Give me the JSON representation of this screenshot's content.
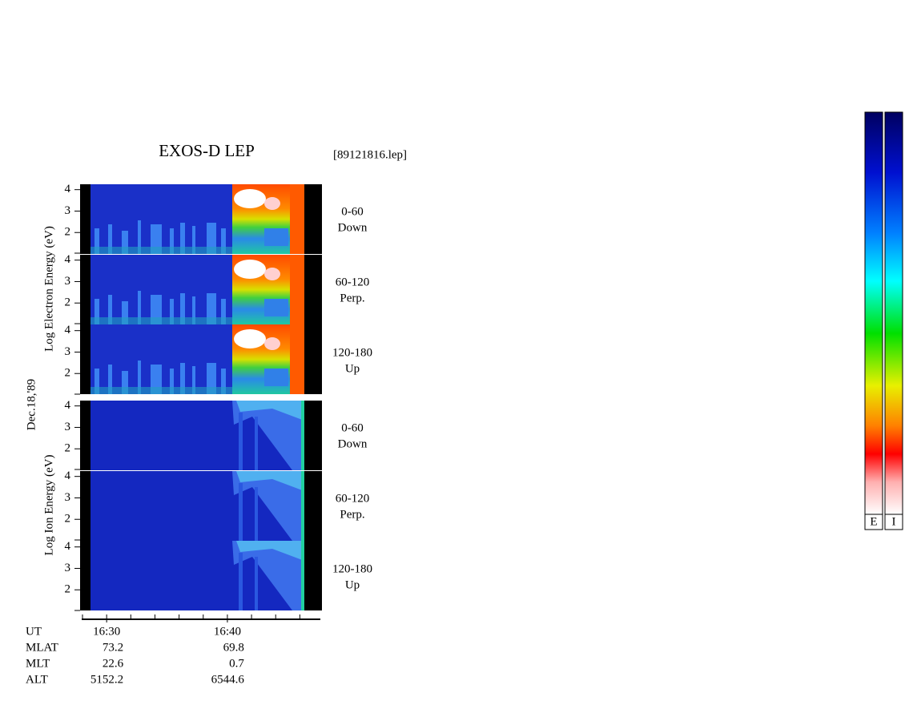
{
  "chart_data": {
    "type": "spectrogram",
    "title": "EXOS-D LEP",
    "file": "[89121816.lep]",
    "date_label": "Dec.18,'89",
    "groups": [
      {
        "ylabel": "Log  Electron  Energy (eV)",
        "panels": [
          {
            "angle": "0-60",
            "direction": "Down"
          },
          {
            "angle": "60-120",
            "direction": "Perp."
          },
          {
            "angle": "120-180",
            "direction": "Up"
          }
        ]
      },
      {
        "ylabel": "Log  Ion  Energy (eV)",
        "panels": [
          {
            "angle": "0-60",
            "direction": "Down"
          },
          {
            "angle": "60-120",
            "direction": "Perp."
          },
          {
            "angle": "120-180",
            "direction": "Up"
          }
        ]
      }
    ],
    "ylim": [
      1,
      4.25
    ],
    "yticks": [
      2,
      3,
      4
    ],
    "xlim": [
      28,
      47.7
    ],
    "xticks": [
      {
        "value": 30,
        "label": "16:30"
      },
      {
        "value": 40,
        "label": "16:40"
      }
    ],
    "xminor": [
      28,
      32,
      34,
      36,
      38,
      42,
      44,
      46
    ],
    "ephemeris": [
      {
        "label": "UT"
      },
      {
        "label": "MLAT",
        "values": [
          73.2,
          69.8
        ]
      },
      {
        "label": "MLT",
        "values": [
          22.6,
          0.7
        ]
      },
      {
        "label": "ALT",
        "values": [
          5152.2,
          6544.6
        ]
      }
    ],
    "colorbar_labels": [
      "E",
      "I"
    ]
  }
}
